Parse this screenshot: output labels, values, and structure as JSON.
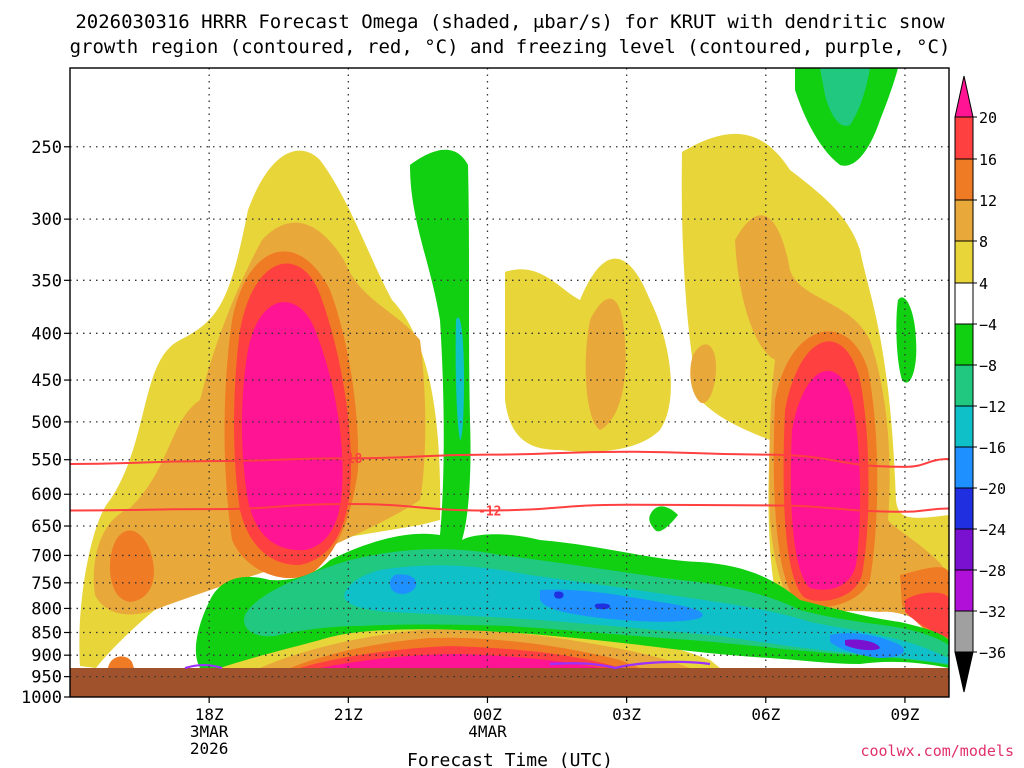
{
  "chart_data": {
    "type": "contour",
    "title_line1": "2026030316 HRRR Forecast Omega (shaded, μbar/s) for KRUT with dendritic snow",
    "title_line2": "growth region (contoured, red, °C) and freezing level (contoured, purple, °C)",
    "xlabel": "Forecast Time (UTC)",
    "ylabel": "",
    "watermark": "coolwx.com/models",
    "y_scale": "log-pressure",
    "y_ticks": [
      "250",
      "300",
      "350",
      "400",
      "450",
      "500",
      "550",
      "600",
      "650",
      "700",
      "750",
      "800",
      "850",
      "900",
      "950",
      "1000"
    ],
    "x_ticks": [
      {
        "hours": 3,
        "label": "18Z",
        "sub1": "3MAR",
        "sub2": "2026"
      },
      {
        "hours": 6,
        "label": "21Z",
        "sub1": "",
        "sub2": ""
      },
      {
        "hours": 9,
        "label": "00Z",
        "sub1": "4MAR",
        "sub2": ""
      },
      {
        "hours": 12,
        "label": "03Z",
        "sub1": "",
        "sub2": ""
      },
      {
        "hours": 15,
        "label": "06Z",
        "sub1": "",
        "sub2": ""
      },
      {
        "hours": 18,
        "label": "09Z",
        "sub1": "",
        "sub2": ""
      }
    ],
    "x_range_hours": [
      0,
      18.95
    ],
    "y_range_hpa": [
      205,
      1000
    ],
    "colorbar": {
      "labels": [
        "20",
        "16",
        "12",
        "8",
        "4",
        "−4",
        "−8",
        "−12",
        "−16",
        "−20",
        "−24",
        "−28",
        "−32",
        "−36"
      ],
      "colors": [
        "#ff1493",
        "#ff4040",
        "#f07b25",
        "#e9a93a",
        "#e7d53a",
        "#ffffff",
        "#11d011",
        "#20c880",
        "#10c0c8",
        "#1e90ff",
        "#2030e0",
        "#7a10d0",
        "#b010d8",
        "#a0a0a0",
        "#000000"
      ]
    },
    "isotherms": [
      {
        "label": "-18",
        "color": "#ff4040",
        "points": [
          [
            0,
            556
          ],
          [
            3,
            552
          ],
          [
            6,
            548
          ],
          [
            9,
            543
          ],
          [
            12,
            539
          ],
          [
            15,
            543
          ],
          [
            18,
            560
          ],
          [
            18.95,
            549
          ]
        ]
      },
      {
        "label": "-12",
        "color": "#ff4040",
        "points": [
          [
            0,
            625
          ],
          [
            3,
            623
          ],
          [
            6,
            615
          ],
          [
            9,
            625
          ],
          [
            12,
            616
          ],
          [
            15,
            617
          ],
          [
            18,
            627
          ],
          [
            18.95,
            622
          ]
        ]
      }
    ],
    "freezing_level_color": "#9b30ff",
    "terrain_color": "#a0522d"
  }
}
